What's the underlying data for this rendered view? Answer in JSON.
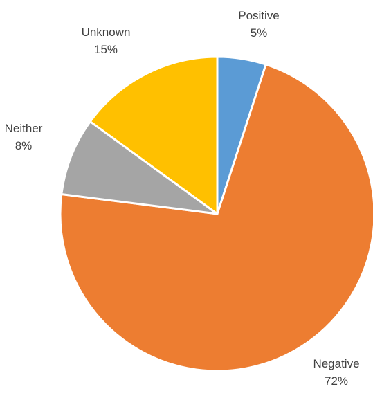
{
  "chart_data": {
    "type": "pie",
    "title": "",
    "slices": [
      {
        "label": "Positive",
        "value": 5,
        "value_label": "5%",
        "color": "#5B9BD5"
      },
      {
        "label": "Negative",
        "value": 72,
        "value_label": "72%",
        "color": "#ED7D31"
      },
      {
        "label": "Neither",
        "value": 8,
        "value_label": "8%",
        "color": "#A5A5A5"
      },
      {
        "label": "Unknown",
        "value": 15,
        "value_label": "15%",
        "color": "#FFC000"
      }
    ],
    "start_angle_deg": 0,
    "direction": "clockwise",
    "legend": "none",
    "data_labels": "outside"
  }
}
